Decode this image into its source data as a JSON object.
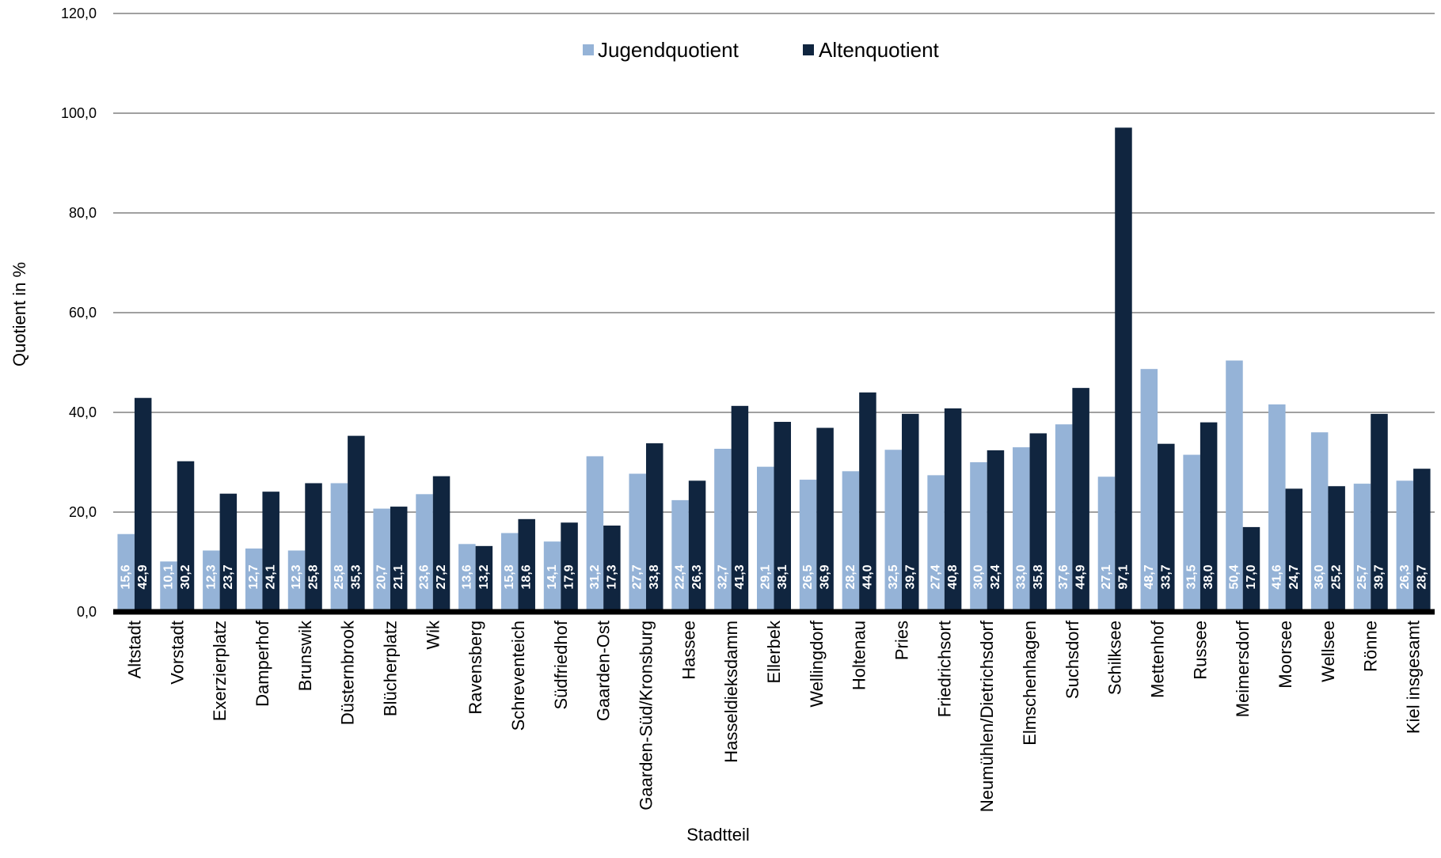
{
  "colors": {
    "jugend": "#95B3D7",
    "alten": "#10253F",
    "grid": "#404040",
    "axis": "#000000"
  },
  "chart_data": {
    "type": "bar",
    "xlabel": "Stadtteil",
    "ylabel": "Quotient in %",
    "ylim": [
      0,
      120
    ],
    "yticks": [
      "0,0",
      "20,0",
      "40,0",
      "60,0",
      "80,0",
      "100,0",
      "120,0"
    ],
    "grid": true,
    "legend_position": "top-center",
    "categories": [
      "Altstadt",
      "Vorstadt",
      "Exerzierplatz",
      "Damperhof",
      "Brunswik",
      "Düsternbrook",
      "Blücherplatz",
      "Wik",
      "Ravensberg",
      "Schreventeich",
      "Südfriedhof",
      "Gaarden-Ost",
      "Gaarden-Süd/Kronsburg",
      "Hassee",
      "Hasseldieksdamm",
      "Ellerbek",
      "Wellingdorf",
      "Holtenau",
      "Pries",
      "Friedrichsort",
      "Neumühlen/Dietrichsdorf",
      "Elmschenhagen",
      "Suchsdorf",
      "Schilksee",
      "Mettenhof",
      "Russee",
      "Meimersdorf",
      "Moorsee",
      "Wellsee",
      "Rönne",
      "Kiel insgesamt"
    ],
    "series": [
      {
        "name": "Jugendquotient",
        "values": [
          15.6,
          10.1,
          12.3,
          12.7,
          12.3,
          25.8,
          20.7,
          23.6,
          13.6,
          15.8,
          14.1,
          31.2,
          27.7,
          22.4,
          32.7,
          29.1,
          26.5,
          28.2,
          32.5,
          27.4,
          30.0,
          33.0,
          37.6,
          27.1,
          48.7,
          31.5,
          50.4,
          41.6,
          36.0,
          25.7,
          26.3
        ],
        "labels": [
          "15,6",
          "10,1",
          "12,3",
          "12,7",
          "12,3",
          "25,8",
          "20,7",
          "23,6",
          "13,6",
          "15,8",
          "14,1",
          "31,2",
          "27,7",
          "22,4",
          "32,7",
          "29,1",
          "26,5",
          "28,2",
          "32,5",
          "27,4",
          "30,0",
          "33,0",
          "37,6",
          "27,1",
          "48,7",
          "31,5",
          "50,4",
          "41,6",
          "36,0",
          "25,7",
          "26,3"
        ]
      },
      {
        "name": "Altenquotient",
        "values": [
          42.9,
          30.2,
          23.7,
          24.1,
          25.8,
          35.3,
          21.1,
          27.2,
          13.2,
          18.6,
          17.9,
          17.3,
          33.8,
          26.3,
          41.3,
          38.1,
          36.9,
          44.0,
          39.7,
          40.8,
          32.4,
          35.8,
          44.9,
          97.1,
          33.7,
          38.0,
          17.0,
          24.7,
          25.2,
          39.7,
          28.7
        ],
        "labels": [
          "42,9",
          "30,2",
          "23,7",
          "24,1",
          "25,8",
          "35,3",
          "21,1",
          "27,2",
          "13,2",
          "18,6",
          "17,9",
          "17,3",
          "33,8",
          "26,3",
          "41,3",
          "38,1",
          "36,9",
          "44,0",
          "39,7",
          "40,8",
          "32,4",
          "35,8",
          "44,9",
          "97,1",
          "33,7",
          "38,0",
          "17,0",
          "24,7",
          "25,2",
          "39,7",
          "28,7"
        ]
      }
    ]
  }
}
